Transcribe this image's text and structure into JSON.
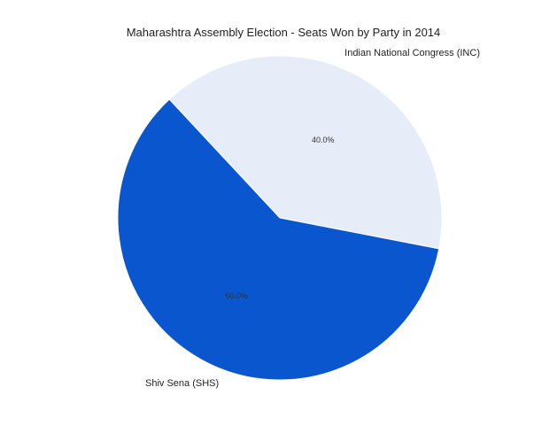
{
  "chart_data": {
    "type": "pie",
    "title": "Maharashtra Assembly Election - Seats Won by Party in 2014",
    "slices": [
      {
        "label": "Indian National Congress (INC)",
        "value": 40.0,
        "percent_label": "40.0%",
        "color": "#e7edf8"
      },
      {
        "label": "Shiv Sena (SHS)",
        "value": 60.0,
        "percent_label": "60.0%",
        "color": "#0a56cf"
      }
    ],
    "legend": "none"
  }
}
